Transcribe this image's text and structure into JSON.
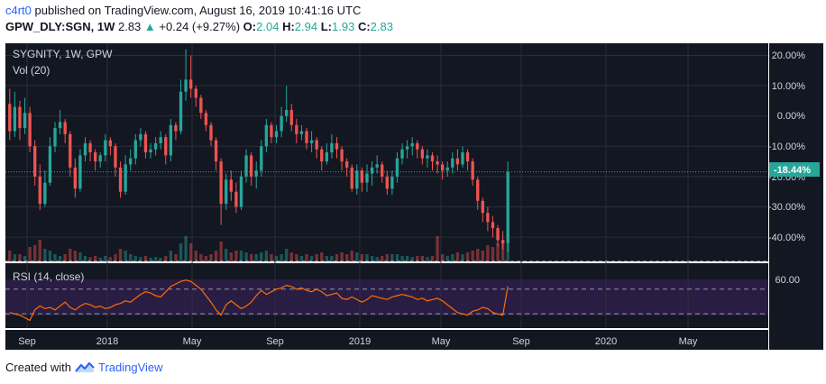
{
  "header": {
    "username": "c4rt0",
    "published_text": "published on TradingView.com, August 16, 2019 10:41:16 UTC",
    "symbol": "GPW_DLY:SGN, 1W",
    "last": "2.83",
    "change": "+0.24 (+9.27%)",
    "o_label": "O:",
    "o_value": "2.04",
    "h_label": "H:",
    "h_value": "2.94",
    "l_label": "L:",
    "l_value": "1.93",
    "c_label": "C:",
    "c_value": "2.83"
  },
  "pane_labels": {
    "main": "SYGNITY, 1W, GPW",
    "volume": "Vol (20)",
    "rsi": "RSI (14, close)"
  },
  "price_axis": [
    "20.00%",
    "10.00%",
    "0.00%",
    "-10.00%",
    "-20.00%",
    "-30.00%",
    "-40.00%"
  ],
  "current_label": "-18.44%",
  "rsi_axis": [
    "60.00"
  ],
  "time_axis": [
    "Sep",
    "2018",
    "May",
    "Sep",
    "2019",
    "May",
    "Sep",
    "2020",
    "May"
  ],
  "footer": {
    "created_with": "Created with",
    "brand": "TradingView"
  },
  "colors": {
    "up": "#26a69a",
    "down": "#ef5350",
    "bg": "#131722",
    "rsi_line": "#ff6d00",
    "label_bg": "#26a69a"
  },
  "chart_data": {
    "type": "candlestick",
    "y_unit": "percent change",
    "y_range": [
      -48,
      24
    ],
    "current_value": -18.44,
    "rsi_level": 60,
    "candles": [
      [
        4,
        -5,
        9,
        -8
      ],
      [
        -5,
        3,
        8,
        -7
      ],
      [
        3,
        -4,
        5,
        -8
      ],
      [
        -4,
        1,
        6,
        -6
      ],
      [
        1,
        -10,
        3,
        -12
      ],
      [
        -10,
        -20,
        -8,
        -23
      ],
      [
        -20,
        -29,
        -16,
        -31
      ],
      [
        -29,
        -22,
        -18,
        -30
      ],
      [
        -22,
        -10,
        -7,
        -23
      ],
      [
        -10,
        -4,
        -2,
        -12
      ],
      [
        -4,
        -2,
        2,
        -6
      ],
      [
        -2,
        -6,
        -1,
        -9
      ],
      [
        -6,
        -17,
        -5,
        -20
      ],
      [
        -17,
        -24,
        -14,
        -27
      ],
      [
        -24,
        -13,
        -11,
        -25
      ],
      [
        -13,
        -9,
        -7,
        -15
      ],
      [
        -9,
        -12,
        -8,
        -15
      ],
      [
        -12,
        -15,
        -11,
        -18
      ],
      [
        -15,
        -13,
        -12,
        -17
      ],
      [
        -13,
        -8,
        -6,
        -15
      ],
      [
        -8,
        -10,
        -7,
        -13
      ],
      [
        -10,
        -17,
        -9,
        -20
      ],
      [
        -17,
        -25,
        -15,
        -27
      ],
      [
        -25,
        -16,
        -13,
        -26
      ],
      [
        -16,
        -14,
        -11,
        -18
      ],
      [
        -14,
        -8,
        -6,
        -16
      ],
      [
        -8,
        -6,
        -4,
        -10
      ],
      [
        -6,
        -12,
        -5,
        -14
      ],
      [
        -12,
        -11,
        -9,
        -14
      ],
      [
        -11,
        -9,
        -7,
        -13
      ],
      [
        -9,
        -7,
        -5,
        -11
      ],
      [
        -7,
        -13,
        -6,
        -16
      ],
      [
        -13,
        -3,
        -1,
        -15
      ],
      [
        -3,
        -5,
        -2,
        -8
      ],
      [
        -5,
        8,
        12,
        -6
      ],
      [
        8,
        12,
        22,
        5
      ],
      [
        12,
        9,
        20,
        6
      ],
      [
        9,
        6,
        10,
        3
      ],
      [
        6,
        1,
        7,
        -1
      ],
      [
        1,
        -3,
        2,
        -5
      ],
      [
        -3,
        -8,
        -2,
        -10
      ],
      [
        -8,
        -15,
        -7,
        -18
      ],
      [
        -15,
        -29,
        -14,
        -36
      ],
      [
        -29,
        -21,
        -19,
        -31
      ],
      [
        -21,
        -25,
        -18,
        -28
      ],
      [
        -25,
        -30,
        -22,
        -32
      ],
      [
        -30,
        -20,
        -18,
        -31
      ],
      [
        -20,
        -13,
        -11,
        -22
      ],
      [
        -13,
        -20,
        -12,
        -23
      ],
      [
        -20,
        -18,
        -15,
        -24
      ],
      [
        -18,
        -10,
        -8,
        -20
      ],
      [
        -10,
        -3,
        -1,
        -12
      ],
      [
        -3,
        -7,
        -2,
        -9
      ],
      [
        -7,
        -5,
        -3,
        -9
      ],
      [
        -5,
        0,
        3,
        -7
      ],
      [
        0,
        2,
        10,
        -2
      ],
      [
        2,
        -3,
        4,
        -5
      ],
      [
        -3,
        -6,
        -1,
        -9
      ],
      [
        -6,
        -5,
        -3,
        -8
      ],
      [
        -5,
        -9,
        -4,
        -11
      ],
      [
        -9,
        -8,
        -5,
        -12
      ],
      [
        -8,
        -11,
        -7,
        -14
      ],
      [
        -11,
        -15,
        -10,
        -18
      ],
      [
        -15,
        -12,
        -9,
        -16
      ],
      [
        -12,
        -9,
        -6,
        -14
      ],
      [
        -9,
        -11,
        -7,
        -14
      ],
      [
        -11,
        -15,
        -10,
        -18
      ],
      [
        -15,
        -17,
        -14,
        -20
      ],
      [
        -17,
        -24,
        -16,
        -25
      ],
      [
        -24,
        -18,
        -16,
        -26
      ],
      [
        -18,
        -22,
        -17,
        -25
      ],
      [
        -22,
        -19,
        -16,
        -25
      ],
      [
        -19,
        -17,
        -15,
        -23
      ],
      [
        -17,
        -16,
        -13,
        -19
      ],
      [
        -16,
        -20,
        -15,
        -22
      ],
      [
        -20,
        -24,
        -18,
        -26
      ],
      [
        -24,
        -20,
        -18,
        -26
      ],
      [
        -20,
        -14,
        -12,
        -22
      ],
      [
        -14,
        -11,
        -9,
        -16
      ],
      [
        -11,
        -10,
        -8,
        -14
      ],
      [
        -10,
        -9,
        -7,
        -13
      ],
      [
        -9,
        -11,
        -8,
        -14
      ],
      [
        -11,
        -14,
        -10,
        -16
      ],
      [
        -14,
        -13,
        -11,
        -17
      ],
      [
        -13,
        -15,
        -12,
        -18
      ],
      [
        -15,
        -16,
        -13,
        -19
      ],
      [
        -16,
        -18,
        -15,
        -21
      ],
      [
        -18,
        -17,
        -15,
        -20
      ],
      [
        -17,
        -14,
        -12,
        -19
      ],
      [
        -14,
        -16,
        -11,
        -18
      ],
      [
        -16,
        -12,
        -10,
        -17
      ],
      [
        -12,
        -15,
        -11,
        -18
      ],
      [
        -15,
        -21,
        -14,
        -23
      ],
      [
        -21,
        -28,
        -20,
        -31
      ],
      [
        -28,
        -32,
        -27,
        -35
      ],
      [
        -32,
        -35,
        -30,
        -38
      ],
      [
        -35,
        -37,
        -33,
        -40
      ],
      [
        -37,
        -41,
        -36,
        -43
      ],
      [
        -41,
        -42,
        -38,
        -44
      ],
      [
        -42,
        -18.44,
        -15,
        -45
      ]
    ],
    "volumes": [
      0.3,
      0.2,
      0.2,
      0.15,
      0.4,
      0.45,
      0.6,
      0.35,
      0.3,
      0.2,
      0.15,
      0.2,
      0.35,
      0.3,
      0.25,
      0.15,
      0.12,
      0.15,
      0.1,
      0.15,
      0.12,
      0.2,
      0.35,
      0.3,
      0.2,
      0.15,
      0.12,
      0.15,
      0.1,
      0.12,
      0.1,
      0.15,
      0.3,
      0.2,
      0.5,
      0.7,
      0.5,
      0.3,
      0.2,
      0.15,
      0.2,
      0.3,
      0.55,
      0.35,
      0.25,
      0.3,
      0.3,
      0.25,
      0.2,
      0.2,
      0.25,
      0.3,
      0.2,
      0.15,
      0.2,
      0.35,
      0.25,
      0.2,
      0.15,
      0.2,
      0.15,
      0.2,
      0.25,
      0.15,
      0.15,
      0.2,
      0.25,
      0.2,
      0.3,
      0.25,
      0.2,
      0.2,
      0.15,
      0.12,
      0.15,
      0.2,
      0.2,
      0.2,
      0.15,
      0.15,
      0.12,
      0.15,
      0.15,
      0.12,
      0.15,
      0.7,
      0.2,
      0.15,
      0.2,
      0.25,
      0.2,
      0.25,
      0.3,
      0.35,
      0.3,
      0.45,
      0.4,
      0.5,
      0.6,
      1.0
    ],
    "rsi": [
      42,
      41,
      40,
      38,
      36,
      44,
      47,
      45,
      46,
      44,
      47,
      50,
      46,
      44,
      47,
      49,
      48,
      46,
      47,
      45,
      46,
      48,
      49,
      51,
      50,
      53,
      56,
      58,
      57,
      55,
      54,
      58,
      62,
      64,
      66,
      67,
      66,
      63,
      60,
      55,
      50,
      44,
      40,
      48,
      51,
      48,
      45,
      47,
      50,
      55,
      59,
      56,
      58,
      60,
      61,
      63,
      62,
      60,
      61,
      59,
      58,
      60,
      58,
      55,
      56,
      57,
      53,
      52,
      54,
      52,
      50,
      52,
      55,
      54,
      53,
      52,
      54,
      55,
      56,
      55,
      54,
      52,
      53,
      51,
      52,
      53,
      51,
      48,
      45,
      42,
      41,
      40,
      43,
      44,
      46,
      45,
      42,
      41,
      40,
      62
    ]
  }
}
